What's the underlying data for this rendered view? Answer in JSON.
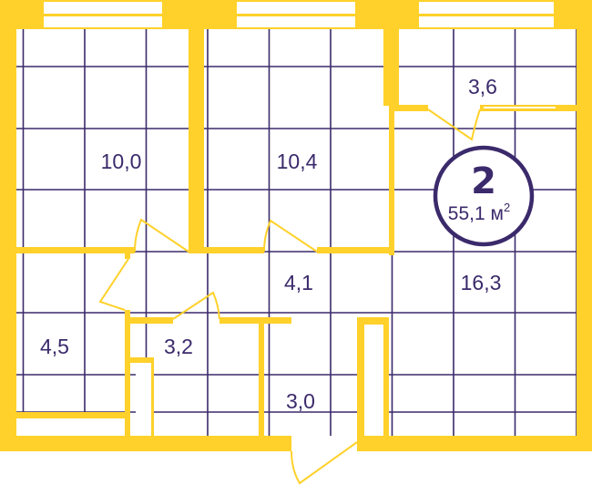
{
  "colors": {
    "wall": "#ffd12a",
    "grid": "#3b2a6b",
    "text": "#3b2a6b",
    "background": "#ffffff"
  },
  "apartment": {
    "rooms_count": "2",
    "total_area": "55,1 м",
    "area_unit_power": "2"
  },
  "rooms": [
    {
      "label": "10,0"
    },
    {
      "label": "10,4"
    },
    {
      "label": "3,6"
    },
    {
      "label": "4,1"
    },
    {
      "label": "16,3"
    },
    {
      "label": "4,5"
    },
    {
      "label": "3,2"
    },
    {
      "label": "3,0"
    }
  ]
}
